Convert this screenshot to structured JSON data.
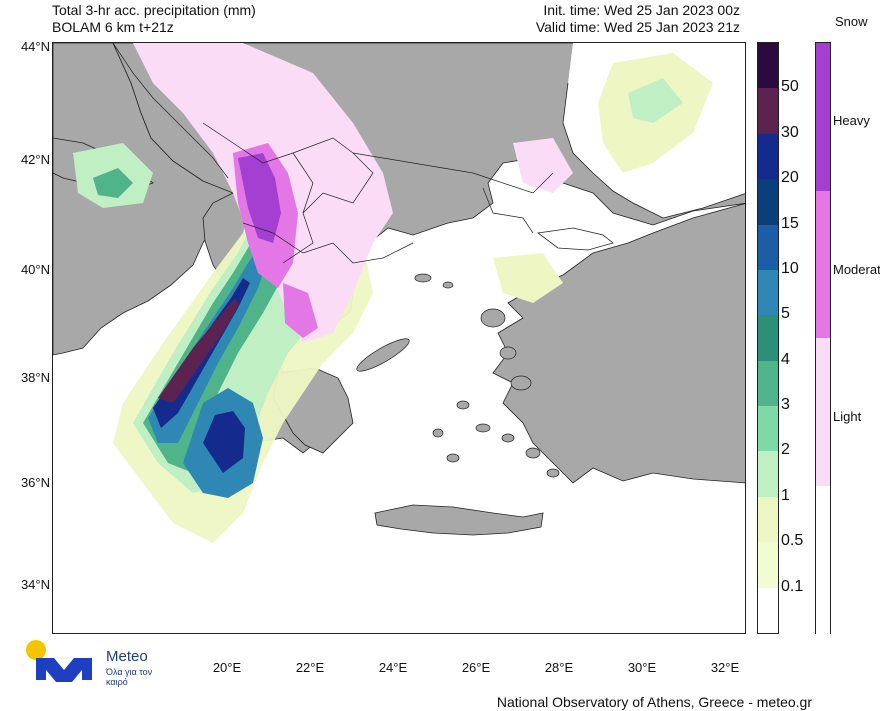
{
  "header": {
    "title_line1": "Total 3-hr acc. precipitation (mm)",
    "title_line2": "BOLAM 6 km t+21z",
    "init_time": "Init. time: Wed 25 Jan 2023 00z",
    "valid_time": "Valid time: Wed 25 Jan 2023 21z"
  },
  "map": {
    "lat_labels": [
      "44°N",
      "42°N",
      "40°N",
      "38°N",
      "36°N",
      "34°N"
    ],
    "lon_labels": [
      "20°E",
      "22°E",
      "24°E",
      "26°E",
      "28°E",
      "30°E",
      "32°E"
    ],
    "land_color": "#a8a8a8",
    "sea_color": "#ffffff"
  },
  "precip_legend": {
    "labels": [
      "50",
      "30",
      "20",
      "15",
      "10",
      "5",
      "4",
      "3",
      "2",
      "1",
      "0.5",
      "0.1"
    ],
    "colors": [
      "#2b0a3d",
      "#5c2350",
      "#142a8c",
      "#0a3f7a",
      "#1a5fa6",
      "#2f87b4",
      "#2c8f78",
      "#4fb48a",
      "#7fd9a6",
      "#bfefc2",
      "#eef7c4",
      "#f3fbd2",
      "#ffffff"
    ]
  },
  "snow_legend": {
    "title": "Snow",
    "labels": [
      "Heavy",
      "Moderate",
      "Light"
    ],
    "colors": [
      "#a43fd1",
      "#e377e6",
      "#fbdcf6",
      "#ffffff"
    ]
  },
  "footer": {
    "credit": "National Observatory of Athens, Greece - meteo.gr"
  },
  "logo": {
    "name": "Meteo",
    "tagline": "Όλα για τον καιρό",
    "icon": "sun-logo-icon"
  }
}
